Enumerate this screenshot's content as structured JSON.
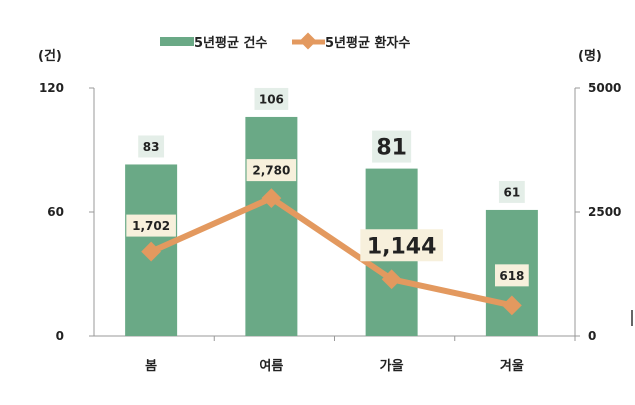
{
  "chart_data": {
    "type": "bar+line",
    "categories": [
      "봄",
      "여름",
      "가을",
      "겨울"
    ],
    "series": [
      {
        "name": "5년평균 건수",
        "type": "bar",
        "axis": "left",
        "values": [
          83,
          106,
          81,
          61
        ],
        "labels": [
          "83",
          "106",
          "81",
          "61"
        ],
        "color": "#6aa986"
      },
      {
        "name": "5년평균 환자수",
        "type": "line",
        "axis": "right",
        "values": [
          1702,
          2780,
          1144,
          618
        ],
        "labels": [
          "1,702",
          "2,780",
          "1,144",
          "618"
        ],
        "color": "#e3995f"
      }
    ],
    "left_axis": {
      "unit_label": "(건)",
      "ylim": [
        0,
        120
      ],
      "ticks": [
        "0",
        "60",
        "120"
      ]
    },
    "right_axis": {
      "unit_label": "(명)",
      "ylim": [
        0,
        5000
      ],
      "ticks": [
        "0",
        "2500",
        "5000"
      ]
    },
    "legend_placement": "top",
    "grid": false
  }
}
